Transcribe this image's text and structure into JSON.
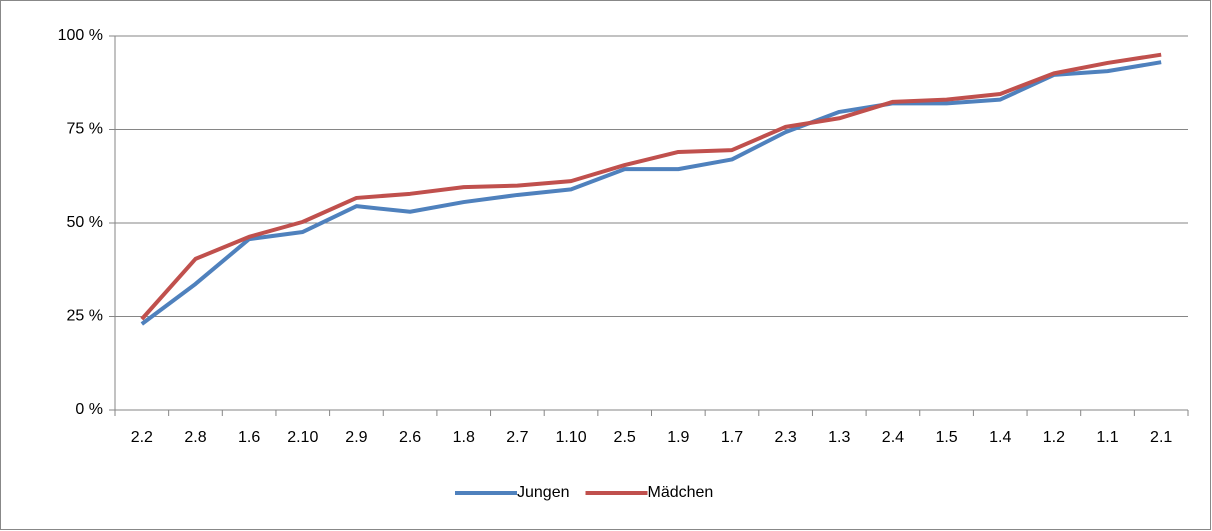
{
  "chart_data": {
    "type": "line",
    "categories": [
      "2.2",
      "2.8",
      "1.6",
      "2.10",
      "2.9",
      "2.6",
      "1.8",
      "2.7",
      "1.10",
      "2.5",
      "1.9",
      "1.7",
      "2.3",
      "1.3",
      "2.4",
      "1.5",
      "1.4",
      "1.2",
      "1.1",
      "2.1"
    ],
    "series": [
      {
        "name": "Jungen",
        "color": "#4f81bd",
        "values": [
          23,
          33.7,
          45.7,
          47.6,
          54.5,
          53,
          55.6,
          57.5,
          59,
          64.4,
          64.4,
          67,
          74.3,
          79.7,
          82,
          82,
          83,
          89.6,
          90.6,
          93
        ]
      },
      {
        "name": "Mädchen",
        "color": "#c0504d",
        "values": [
          24.3,
          40.4,
          46.3,
          50.3,
          56.7,
          57.8,
          59.6,
          60,
          61.2,
          65.5,
          69,
          69.5,
          75.7,
          78,
          82.4,
          83,
          84.5,
          90,
          92.8,
          95
        ]
      }
    ],
    "ylim": [
      0,
      100
    ],
    "yticks": [
      {
        "value": 0,
        "label": "0 %"
      },
      {
        "value": 25,
        "label": "25 %"
      },
      {
        "value": 50,
        "label": "50 %"
      },
      {
        "value": 75,
        "label": "75 %"
      },
      {
        "value": 100,
        "label": "100 %"
      }
    ],
    "grid": true,
    "legend": "bottom"
  }
}
